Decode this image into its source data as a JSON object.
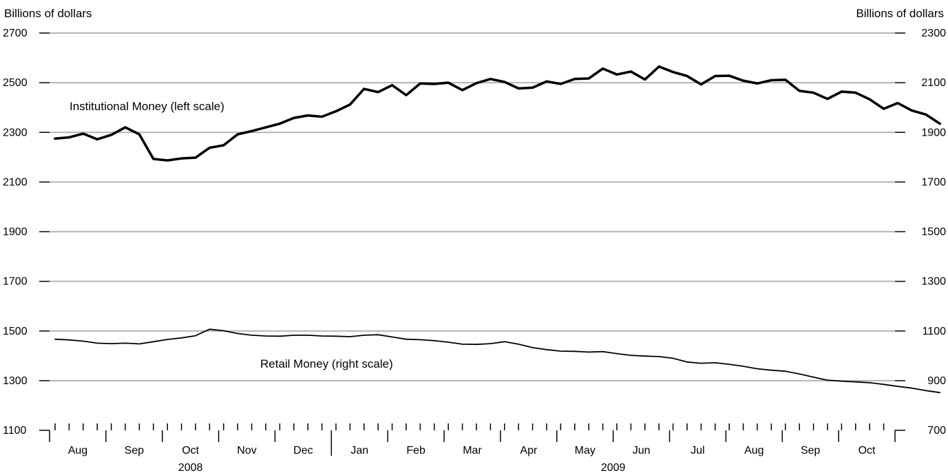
{
  "chart_data": {
    "type": "line",
    "left_axis": {
      "label": "Billions of dollars",
      "ylim": [
        1100,
        2700
      ],
      "ticks": [
        1100,
        1300,
        1500,
        1700,
        1900,
        2100,
        2300,
        2500,
        2700
      ]
    },
    "right_axis": {
      "label": "Billions of dollars",
      "ylim": [
        700,
        2300
      ],
      "ticks": [
        700,
        900,
        1100,
        1300,
        1500,
        1700,
        1900,
        2100,
        2300
      ]
    },
    "grid": true,
    "x_axis": {
      "months": [
        {
          "label": "Aug",
          "year": 2008
        },
        {
          "label": "Sep",
          "year": 2008
        },
        {
          "label": "Oct",
          "year": 2008
        },
        {
          "label": "Nov",
          "year": 2008
        },
        {
          "label": "Dec",
          "year": 2008
        },
        {
          "label": "Jan",
          "year": 2009
        },
        {
          "label": "Feb",
          "year": 2009
        },
        {
          "label": "Mar",
          "year": 2009
        },
        {
          "label": "Apr",
          "year": 2009
        },
        {
          "label": "May",
          "year": 2009
        },
        {
          "label": "Jun",
          "year": 2009
        },
        {
          "label": "Jul",
          "year": 2009
        },
        {
          "label": "Aug",
          "year": 2009
        },
        {
          "label": "Sep",
          "year": 2009
        },
        {
          "label": "Oct",
          "year": 2009
        }
      ],
      "years": [
        {
          "label": "2008"
        },
        {
          "label": "2009"
        }
      ],
      "weekly_ticks": true
    },
    "series": [
      {
        "name": "Institutional Money (left scale)",
        "axis": "left",
        "line_weight": "heavy",
        "x_start": "2008-07-30",
        "x_interval": "weekly",
        "values": [
          2275,
          2280,
          2295,
          2272,
          2290,
          2320,
          2292,
          2193,
          2187,
          2195,
          2198,
          2238,
          2248,
          2292,
          2305,
          2320,
          2335,
          2358,
          2368,
          2363,
          2385,
          2412,
          2475,
          2462,
          2490,
          2450,
          2497,
          2495,
          2500,
          2470,
          2498,
          2515,
          2503,
          2477,
          2480,
          2505,
          2495,
          2515,
          2517,
          2557,
          2533,
          2545,
          2513,
          2565,
          2543,
          2527,
          2493,
          2527,
          2528,
          2508,
          2497,
          2510,
          2512,
          2467,
          2460,
          2435,
          2464,
          2460,
          2433,
          2395,
          2418,
          2388,
          2372,
          2335
        ]
      },
      {
        "name": "Retail Money (right scale)",
        "axis": "right",
        "line_weight": "light",
        "x_start": "2008-07-30",
        "x_interval": "weekly",
        "values": [
          1067,
          1064,
          1059,
          1051,
          1049,
          1051,
          1048,
          1057,
          1066,
          1072,
          1081,
          1107,
          1101,
          1090,
          1083,
          1080,
          1079,
          1083,
          1083,
          1080,
          1079,
          1077,
          1083,
          1085,
          1076,
          1067,
          1065,
          1061,
          1055,
          1047,
          1046,
          1049,
          1057,
          1047,
          1033,
          1025,
          1019,
          1018,
          1015,
          1017,
          1009,
          1002,
          999,
          997,
          990,
          975,
          970,
          972,
          966,
          958,
          948,
          942,
          938,
          927,
          914,
          902,
          898,
          895,
          892,
          885,
          877,
          870,
          860,
          852
        ]
      }
    ]
  }
}
